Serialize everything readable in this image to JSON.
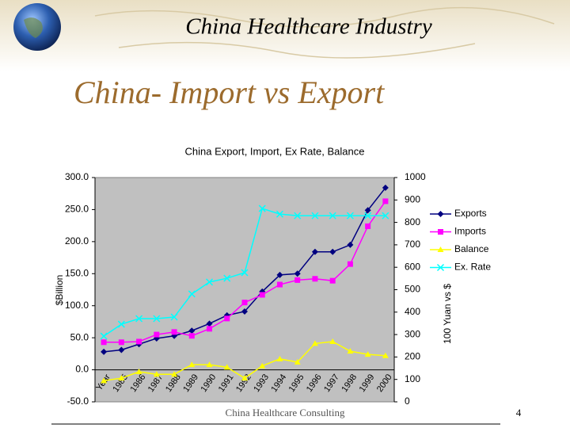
{
  "slide": {
    "header": "China Healthcare Industry",
    "title": "China- Import vs Export",
    "footer": "China Healthcare Consulting",
    "page_number": "4"
  },
  "chart_data": {
    "type": "line",
    "title": "China Export, Import, Ex Rate, Balance",
    "y_label": "$Billion",
    "y2_label": "100 Yuan vs $",
    "categories": [
      "Year",
      "1985",
      "1986",
      "1987",
      "1988",
      "1989",
      "1990",
      "1991",
      "1992",
      "1993",
      "1994",
      "1995",
      "1996",
      "1997",
      "1998",
      "1999",
      "2000"
    ],
    "series": [
      {
        "name": "Exports",
        "color": "#000080",
        "marker": "diamond",
        "values": [
          28,
          31,
          40,
          49,
          53,
          61,
          72,
          85,
          91,
          122,
          148,
          150,
          184,
          184,
          195,
          249,
          284
        ]
      },
      {
        "name": "Imports",
        "color": "#ff00ff",
        "marker": "square",
        "values": [
          43,
          43,
          44,
          55,
          59,
          53,
          64,
          80,
          105,
          117,
          133,
          140,
          142,
          139,
          165,
          224,
          263
        ]
      },
      {
        "name": "Balance",
        "color": "#ffff00",
        "marker": "triangle",
        "values": [
          -17,
          -13,
          -3,
          -7,
          -7,
          8,
          8,
          4,
          -13,
          6,
          17,
          12,
          41,
          44,
          29,
          24,
          22
        ]
      },
      {
        "name": "Ex. Rate",
        "color": "#00ffff",
        "marker": "x",
        "axis": "y2",
        "values": [
          293,
          346,
          371,
          371,
          378,
          481,
          534,
          551,
          576,
          862,
          837,
          830,
          830,
          830,
          830,
          830,
          830
        ]
      }
    ],
    "ylim": [
      -50,
      300
    ],
    "yticks": [
      {
        "value": -50,
        "label": "-50.0"
      },
      {
        "value": 0,
        "label": "0.0"
      },
      {
        "value": 50,
        "label": "50.0"
      },
      {
        "value": 100,
        "label": "100.0"
      },
      {
        "value": 150,
        "label": "150.0"
      },
      {
        "value": 200,
        "label": "200.0"
      },
      {
        "value": 250,
        "label": "250.0"
      },
      {
        "value": 300,
        "label": "300.0"
      }
    ],
    "y2lim": [
      0,
      1000
    ],
    "y2ticks": [
      0,
      100,
      200,
      300,
      400,
      500,
      600,
      700,
      800,
      900,
      1000
    ],
    "grid": false,
    "legend": "right",
    "plot_background": "#c0c0c0"
  }
}
